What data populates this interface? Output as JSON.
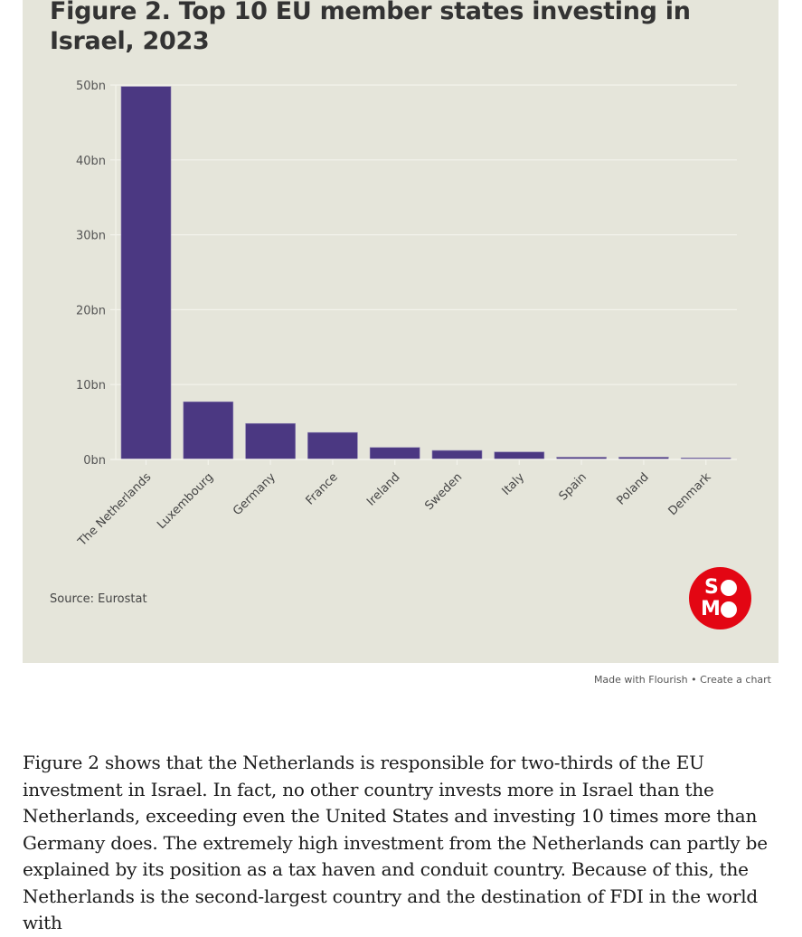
{
  "chart_data": {
    "type": "bar",
    "title": "Figure 2. Top 10 EU member states investing in Israel, 2023",
    "xlabel": "",
    "ylabel": "",
    "ylim": [
      0,
      50
    ],
    "yticks": [
      0,
      10,
      20,
      30,
      40,
      50
    ],
    "ytick_labels": [
      "0bn",
      "10bn",
      "20bn",
      "30bn",
      "40bn",
      "50bn"
    ],
    "grid": true,
    "categories": [
      "The Netherlands",
      "Luxembourg",
      "Germany",
      "France",
      "Ireland",
      "Sweden",
      "Italy",
      "Spain",
      "Poland",
      "Denmark"
    ],
    "values": [
      49.8,
      7.7,
      4.8,
      3.6,
      1.6,
      1.2,
      1.0,
      0.3,
      0.3,
      0.2
    ],
    "unit": "bn",
    "bar_color": "#4b3882",
    "background_color": "#e5e5da"
  },
  "source": "Source: Eurostat",
  "logo": {
    "text_top": "SO",
    "text_bottom": "MO",
    "color": "#e30613"
  },
  "credit": {
    "made_with": "Made with Flourish",
    "separator": " • ",
    "create": "Create a chart"
  },
  "article": {
    "paragraph": "Figure 2 shows that the Netherlands is responsible for two-thirds of the EU investment in Israel. In fact, no other country invests more in Israel than the Netherlands, exceeding even the United States and investing 10 times more than Germany does. The extremely high investment from the Netherlands can partly be explained by its position as a tax haven and conduit country. Because of this, the Netherlands is the second-largest country and the destination of FDI in the world with"
  }
}
